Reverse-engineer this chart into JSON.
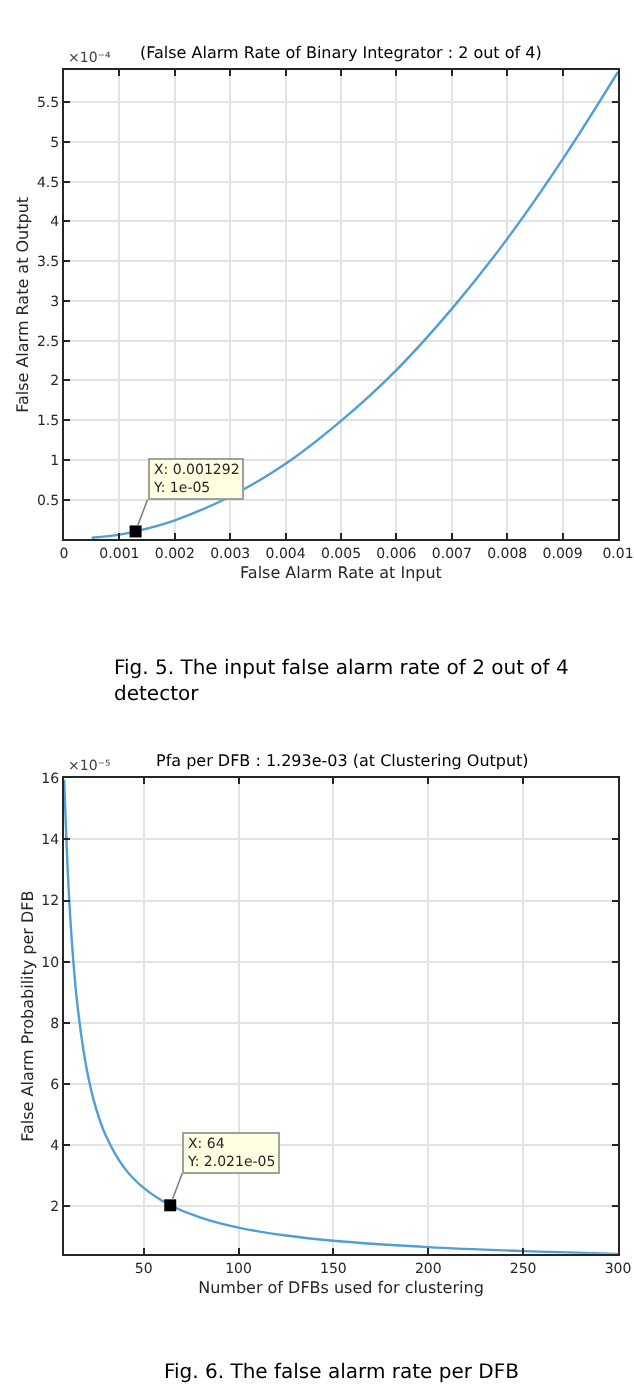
{
  "chart_data": [
    {
      "type": "line",
      "title": "(False Alarm Rate of Binary Integrator : 2 out of 4)",
      "xlabel": "False Alarm Rate at Input",
      "ylabel": "False Alarm Rate at Output",
      "series": [
        {
          "color": "#4f9fd6",
          "x": [
            0.0005,
            0.001,
            0.001292,
            0.002,
            0.003,
            0.004,
            0.005,
            0.006,
            0.007,
            0.008,
            0.009,
            0.01
          ],
          "values": [
            0.02,
            0.06,
            0.1,
            0.24,
            0.54,
            0.95,
            1.49,
            2.13,
            2.9,
            3.78,
            4.78,
            5.88
          ]
        },
        {
          "type": "scatter",
          "marker": "square",
          "color": "#000000",
          "x": [
            0.001292
          ],
          "values": [
            0.1
          ]
        }
      ],
      "xlim": [
        0,
        0.01
      ],
      "xticks": [
        0,
        0.001,
        0.002,
        0.003,
        0.004,
        0.005,
        0.006,
        0.007,
        0.008,
        0.009,
        0.01
      ],
      "ylim": [
        0,
        5.9
      ],
      "yticks": [
        0.5,
        1,
        1.5,
        2,
        2.5,
        3,
        3.5,
        4,
        4.5,
        5,
        5.5
      ],
      "grid": true,
      "annotations": [
        "×10⁻⁴",
        {
          "text": "X: 0.001292\nY: 1e-05",
          "x": 0.001292,
          "y": 0.1
        },
        "Fig. 5. The input false alarm rate of 2 out of 4\ndetector"
      ]
    },
    {
      "type": "line",
      "title": "Pfa per DFB : 1.293e-03 (at Clustering Output)",
      "xlabel": "Number of DFBs used for clustering",
      "ylabel": "False Alarm Probability per DFB",
      "series": [
        {
          "color": "#4f9fd6",
          "x": [
            8.1,
            10,
            12,
            15,
            20,
            25,
            30,
            40,
            50,
            64,
            80,
            100,
            125,
            150,
            200,
            250,
            300
          ],
          "values": [
            15.96,
            12.93,
            10.78,
            8.62,
            6.47,
            5.17,
            4.31,
            3.23,
            2.59,
            2.02,
            1.62,
            1.29,
            1.03,
            0.86,
            0.65,
            0.52,
            0.43
          ]
        },
        {
          "type": "scatter",
          "marker": "square",
          "color": "#000000",
          "x": [
            64
          ],
          "values": [
            2.02
          ]
        }
      ],
      "xlim": [
        8,
        300
      ],
      "xticks": [
        50,
        100,
        150,
        200,
        250,
        300
      ],
      "ylim": [
        0.43,
        16
      ],
      "yticks": [
        2,
        4,
        6,
        8,
        10,
        12,
        14,
        16
      ],
      "grid": true,
      "annotations": [
        "×10⁻⁵",
        {
          "text": "X: 64\nY: 2.021e-05",
          "x": 64,
          "y": 2.02
        },
        "Fig. 6. The false alarm rate per DFB"
      ]
    }
  ]
}
